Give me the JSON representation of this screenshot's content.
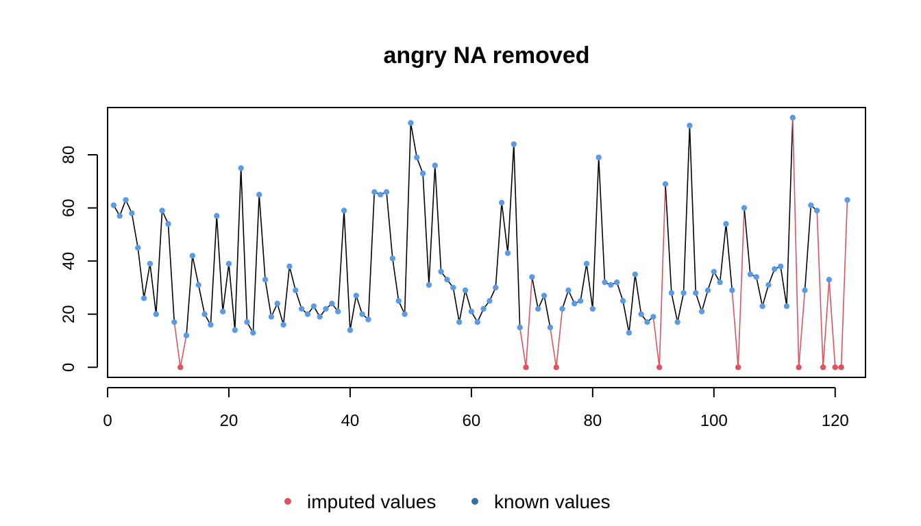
{
  "chart_data": {
    "type": "line",
    "title": "angry NA removed",
    "xlabel": "",
    "ylabel": "",
    "xlim": [
      0,
      125
    ],
    "ylim": [
      -3.8,
      97.8
    ],
    "x_ticks": [
      0,
      20,
      40,
      60,
      80,
      100,
      120
    ],
    "y_ticks": [
      0,
      20,
      40,
      60,
      80
    ],
    "x_tick_labels": [
      "0",
      "20",
      "40",
      "60",
      "80",
      "100",
      "120"
    ],
    "y_tick_labels": [
      "0",
      "20",
      "40",
      "60",
      "80"
    ],
    "grid": false,
    "legend_position": "bottom-center",
    "colors": {
      "imputed": "#E0525E",
      "known": "#5B9BE3",
      "known_legend": "#3A6EA8",
      "line": "#000000",
      "frame": "#000000"
    },
    "legend": [
      {
        "label": "imputed values",
        "color": "#E0525E"
      },
      {
        "label": "known values",
        "color": "#3A6EA8"
      }
    ],
    "x": [
      1,
      2,
      3,
      4,
      5,
      6,
      7,
      8,
      9,
      10,
      11,
      12,
      13,
      14,
      15,
      16,
      17,
      18,
      19,
      20,
      21,
      22,
      23,
      24,
      25,
      26,
      27,
      28,
      29,
      30,
      31,
      32,
      33,
      34,
      35,
      36,
      37,
      38,
      39,
      40,
      41,
      42,
      43,
      44,
      45,
      46,
      47,
      48,
      49,
      50,
      51,
      52,
      53,
      54,
      55,
      56,
      57,
      58,
      59,
      60,
      61,
      62,
      63,
      64,
      65,
      66,
      67,
      68,
      69,
      70,
      71,
      72,
      73,
      74,
      75,
      76,
      77,
      78,
      79,
      80,
      81,
      82,
      83,
      84,
      85,
      86,
      87,
      88,
      89,
      90,
      91,
      92,
      93,
      94,
      95,
      96,
      97,
      98,
      99,
      100,
      101,
      102,
      103,
      104,
      105,
      106,
      107,
      108,
      109,
      110,
      111,
      112,
      113,
      114,
      115,
      116,
      117,
      118,
      119,
      120,
      121,
      122
    ],
    "y": [
      61,
      57,
      63,
      58,
      45,
      26,
      39,
      20,
      59,
      54,
      17,
      0,
      12,
      42,
      31,
      20,
      16,
      57,
      21,
      39,
      14,
      75,
      17,
      13,
      65,
      33,
      19,
      24,
      16,
      38,
      29,
      22,
      20,
      23,
      19,
      22,
      24,
      21,
      59,
      14,
      27,
      20,
      18,
      66,
      65,
      66,
      41,
      25,
      20,
      92,
      79,
      73,
      31,
      76,
      36,
      33,
      30,
      17,
      29,
      21,
      17,
      22,
      25,
      30,
      62,
      43,
      84,
      15,
      0,
      34,
      22,
      27,
      15,
      0,
      22,
      29,
      24,
      25,
      39,
      22,
      79,
      32,
      31,
      32,
      25,
      13,
      35,
      20,
      17,
      19,
      0,
      69,
      28,
      17,
      28,
      91,
      28,
      21,
      29,
      36,
      32,
      54,
      29,
      0,
      60,
      35,
      34,
      23,
      31,
      37,
      38,
      23,
      94,
      0,
      29,
      61,
      59,
      0,
      33,
      0,
      0,
      63
    ],
    "imputed_x": [
      12,
      69,
      74,
      91,
      104,
      114,
      118,
      120,
      121
    ]
  }
}
